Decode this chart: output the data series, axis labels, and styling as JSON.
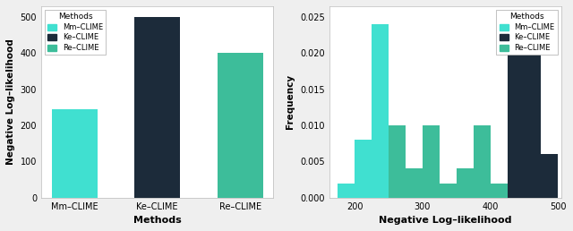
{
  "bar_categories": [
    "Mm–CLIME",
    "Ke–CLIME",
    "Re–CLIME"
  ],
  "bar_values": [
    245,
    500,
    400
  ],
  "bar_colors": [
    "#40E0D0",
    "#1C2B3A",
    "#3DBD9A"
  ],
  "bar_xlabel": "Methods",
  "bar_ylabel": "Negative Log–likelihood",
  "bar_ylim": [
    0,
    530
  ],
  "bar_yticks": [
    0,
    100,
    200,
    300,
    400,
    500
  ],
  "method_colors": [
    "#40E0D0",
    "#1C2B3A",
    "#3DBD9A"
  ],
  "legend_labels": [
    "Mm–CLIME",
    "Ke–CLIME",
    "Re–CLIME"
  ],
  "hist_xlabel": "Negative Log–likelihood",
  "hist_ylabel": "Frequency",
  "hist_xlim": [
    162,
    505
  ],
  "hist_xticks": [
    200,
    300,
    400,
    500
  ],
  "hist_ylim": [
    0,
    0.0265
  ],
  "hist_yticks": [
    0.0,
    0.005,
    0.01,
    0.015,
    0.02,
    0.025
  ],
  "mm_bins": [
    175,
    200,
    225,
    250,
    275,
    300
  ],
  "mm_freqs": [
    0.002,
    0.008,
    0.024,
    0.01,
    0.002,
    0.002
  ],
  "ke_bins": [
    425,
    450,
    475
  ],
  "ke_freqs": [
    0.02,
    0.02,
    0.006
  ],
  "re_bins": [
    250,
    275,
    300,
    325,
    350,
    375,
    400,
    425,
    450,
    475
  ],
  "re_freqs": [
    0.01,
    0.004,
    0.01,
    0.002,
    0.004,
    0.01,
    0.002,
    0.002,
    0.004,
    0.004
  ],
  "bin_width": 25,
  "bg_color": "#EFEFEF",
  "plot_bg": "#FFFFFF",
  "grid_color": "#FFFFFF"
}
